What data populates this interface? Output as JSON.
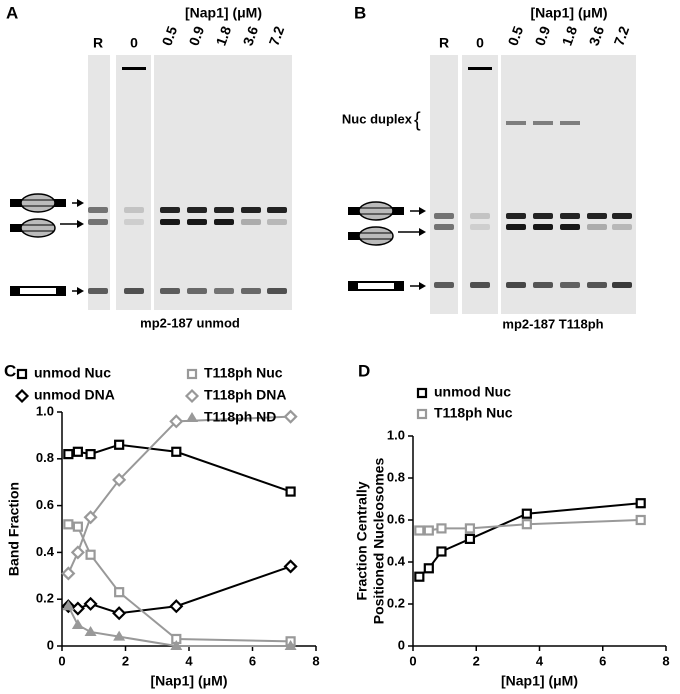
{
  "panels": [
    {
      "letter": "A",
      "conc_label": "[Nap1] (μM)",
      "lanes": [
        "R",
        "0",
        "0.5",
        "0.9",
        "1.8",
        "3.6",
        "7.2"
      ],
      "caption": "mp2-187  unmod"
    },
    {
      "letter": "B",
      "conc_label": "[Nap1] (μM)",
      "lanes": [
        "R",
        "0",
        "0.5",
        "0.9",
        "1.8",
        "3.6",
        "7.2"
      ],
      "duplex_label": "Nuc duplex",
      "caption": "mp2-187 T118ph"
    }
  ],
  "chart_data": [
    {
      "type": "line",
      "letter": "C",
      "xlabel": "[Nap1] (μM)",
      "ylabel": "Band Fraction",
      "x": [
        0.2,
        0.5,
        0.9,
        1.8,
        3.6,
        7.2
      ],
      "xlim": [
        0,
        8
      ],
      "xticks": [
        0,
        2,
        4,
        6,
        8
      ],
      "ylim": [
        0,
        1
      ],
      "yticks": [
        0,
        0.2,
        0.4,
        0.6,
        0.8,
        {
          "value": 1,
          "label": "1.0"
        }
      ],
      "series": [
        {
          "name": "unmod Nuc",
          "color": "#000000",
          "marker": "square",
          "values": [
            0.82,
            0.83,
            0.82,
            0.86,
            0.83,
            0.66
          ]
        },
        {
          "name": "unmod DNA",
          "color": "#000000",
          "marker": "diamond",
          "values": [
            0.17,
            0.16,
            0.18,
            0.14,
            0.17,
            0.34
          ]
        },
        {
          "name": "T118ph Nuc",
          "color": "#999999",
          "marker": "square",
          "values": [
            0.52,
            0.51,
            0.39,
            0.23,
            0.03,
            0.02
          ]
        },
        {
          "name": "T118ph DNA",
          "color": "#999999",
          "marker": "diamond",
          "values": [
            0.31,
            0.4,
            0.55,
            0.71,
            0.96,
            0.98
          ]
        },
        {
          "name": "T118ph ND",
          "color": "#999999",
          "marker": "triangle",
          "values": [
            0.17,
            0.09,
            0.06,
            0.04,
            0.0,
            0.0
          ]
        }
      ]
    },
    {
      "type": "line",
      "letter": "D",
      "xlabel": "[Nap1] (μM)",
      "ylabel": [
        "Fraction Centrally",
        "Positioned Nucleosomes"
      ],
      "x": [
        0.2,
        0.5,
        0.9,
        1.8,
        3.6,
        7.2
      ],
      "xlim": [
        0,
        8
      ],
      "xticks": [
        0,
        2,
        4,
        6,
        8
      ],
      "ylim": [
        0,
        1
      ],
      "yticks": [
        0,
        0.2,
        0.4,
        0.6,
        0.8,
        {
          "value": 1,
          "label": "1.0"
        }
      ],
      "series": [
        {
          "name": "unmod Nuc",
          "color": "#000000",
          "marker": "square",
          "values": [
            0.33,
            0.37,
            0.45,
            0.51,
            0.63,
            0.68
          ]
        },
        {
          "name": "T118ph Nuc",
          "color": "#999999",
          "marker": "square",
          "values": [
            0.55,
            0.55,
            0.56,
            0.56,
            0.58,
            0.6
          ]
        }
      ]
    }
  ]
}
